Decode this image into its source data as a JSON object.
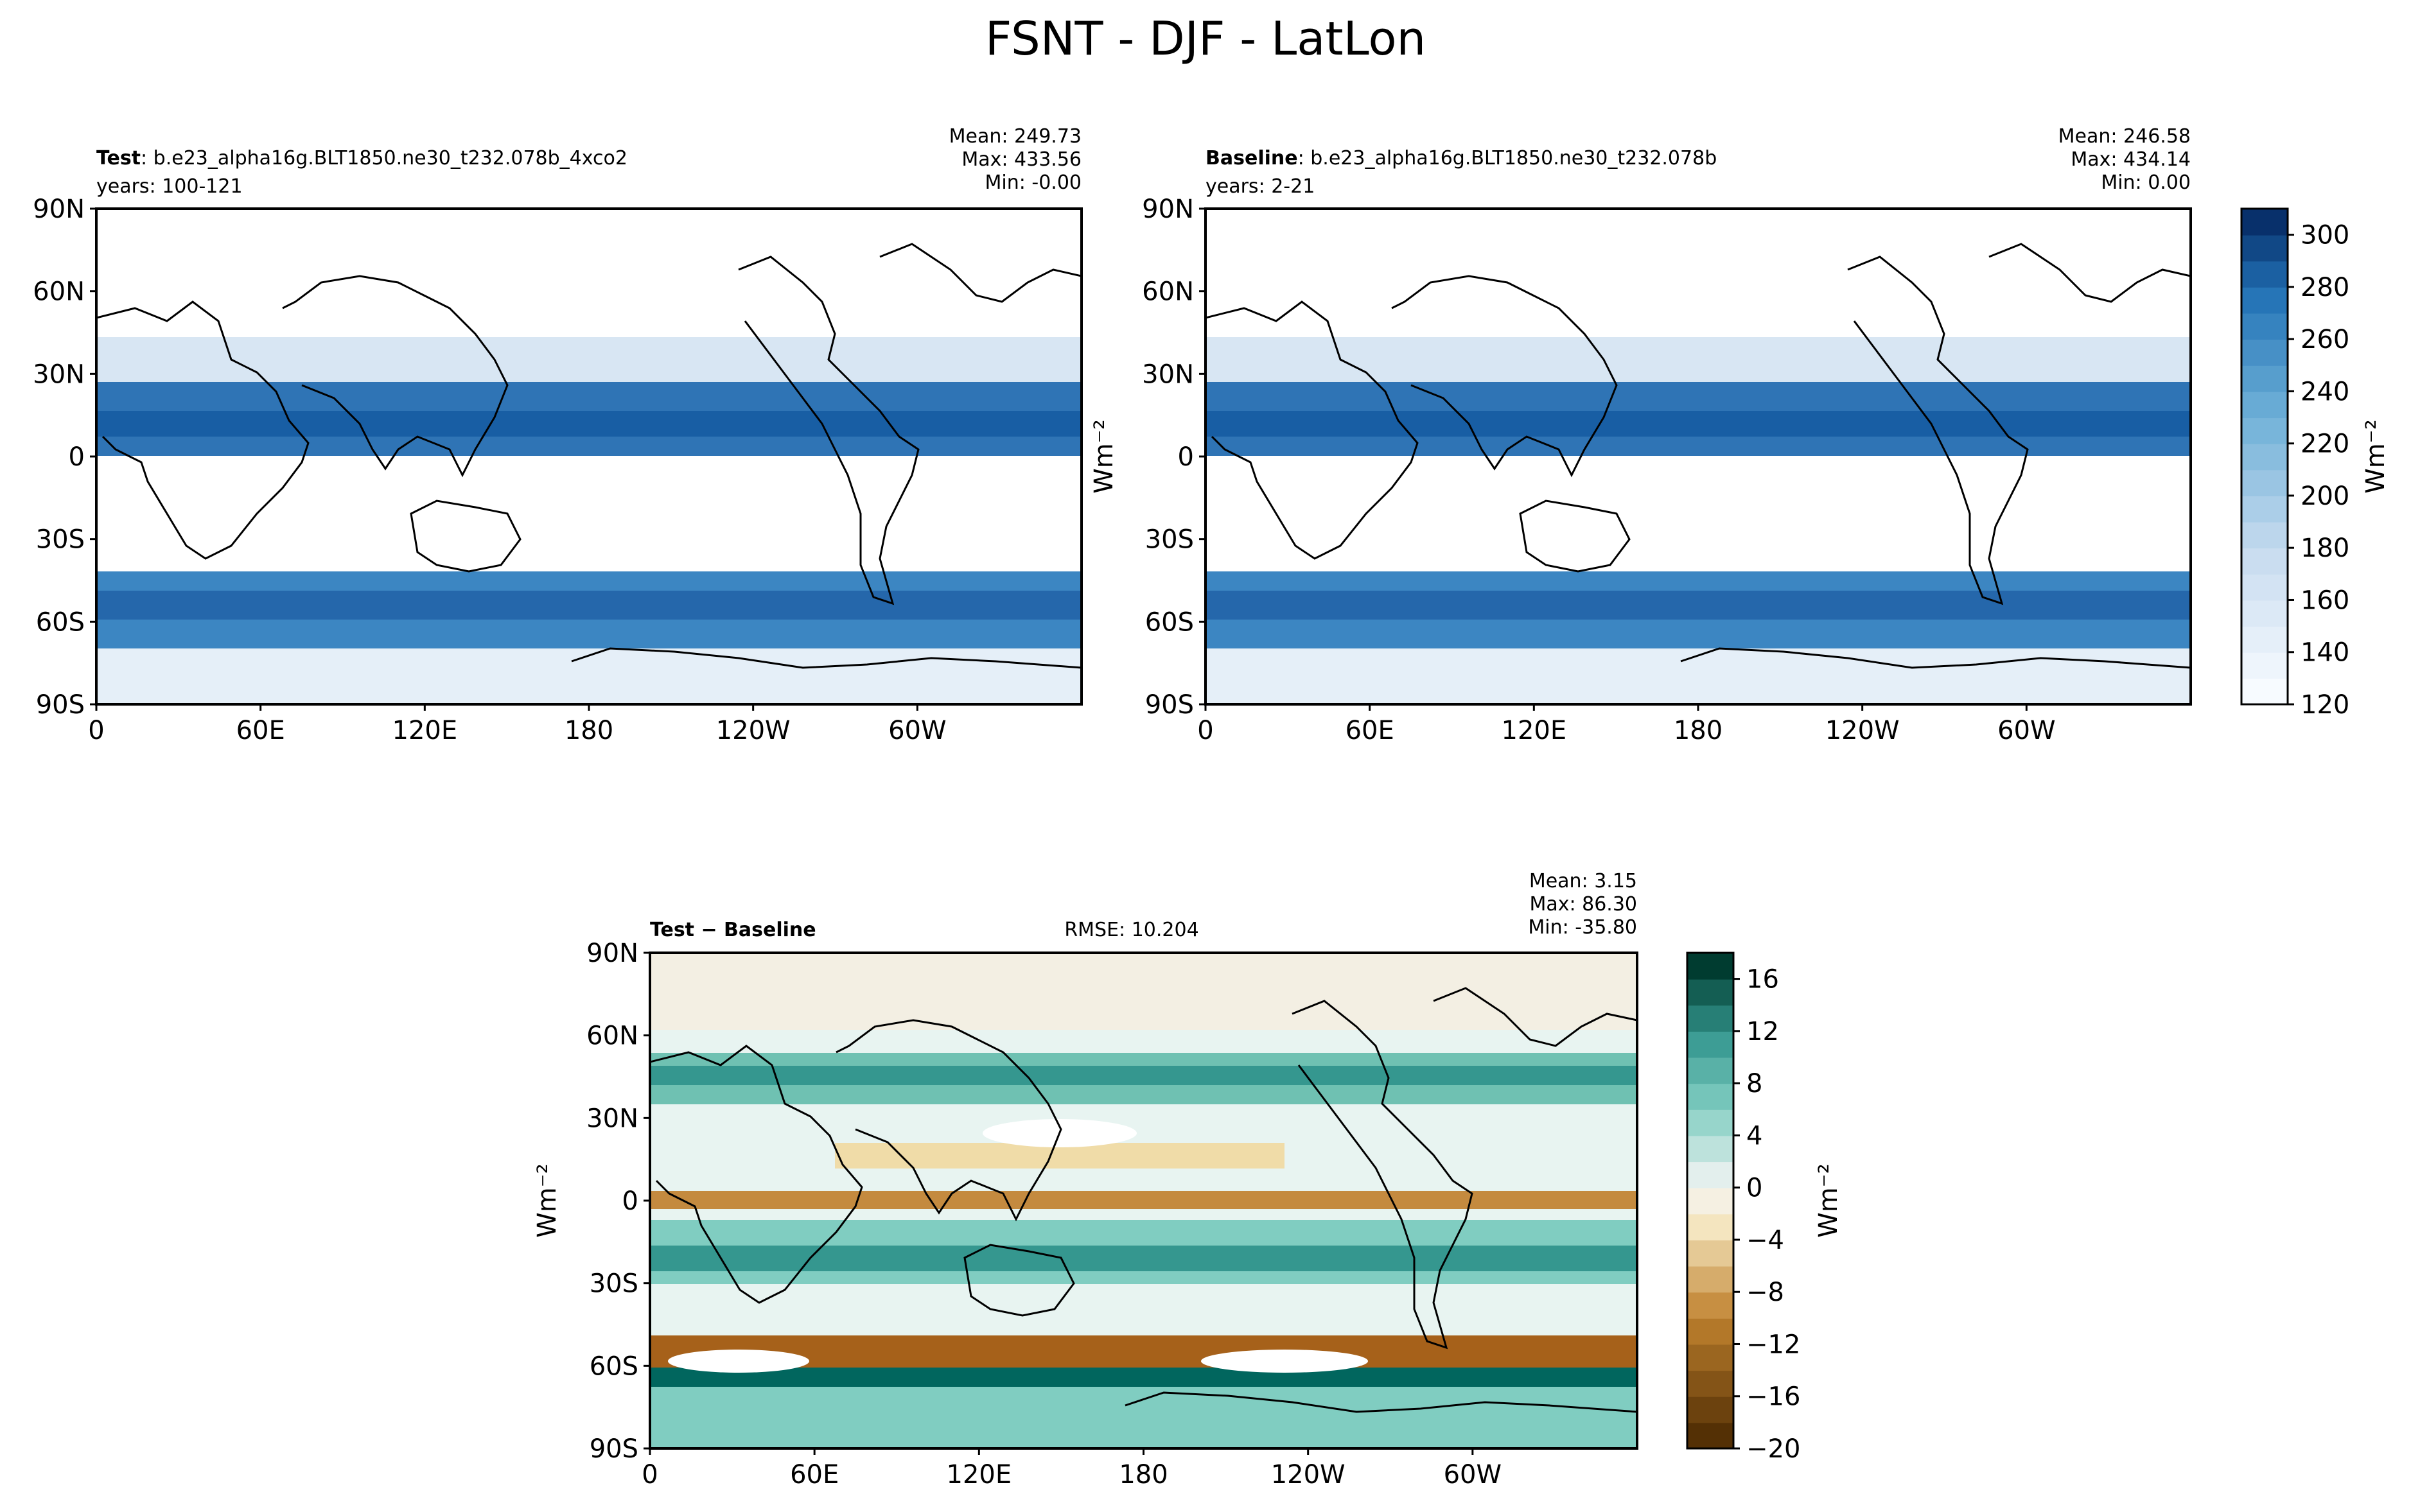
{
  "figure": {
    "title": "FSNT - DJF - LatLon"
  },
  "chart_data": [
    {
      "type": "heatmap",
      "panel": "test",
      "label_bold": "Test",
      "label_rest": ": b.e23_alpha16g.BLT1850.ne30_t232.078b_4xco2",
      "years": "years: 100-121",
      "stats": [
        "Mean: 249.73",
        "Max: 433.56",
        "Min: -0.00"
      ],
      "xticks": [
        "0",
        "60E",
        "120E",
        "180",
        "120W",
        "60W"
      ],
      "yticks": [
        "90N",
        "60N",
        "30N",
        "0",
        "30S",
        "60S",
        "90S"
      ],
      "xlim": [
        0,
        360
      ],
      "ylim": [
        -90,
        90
      ],
      "colorscale": "Blues",
      "vmin": 120,
      "vmax": 310
    },
    {
      "type": "heatmap",
      "panel": "baseline",
      "label_bold": "Baseline",
      "label_rest": ": b.e23_alpha16g.BLT1850.ne30_t232.078b",
      "years": "years: 2-21",
      "stats": [
        "Mean: 246.58",
        "Max: 434.14",
        "Min:  0.00"
      ],
      "xticks": [
        "0",
        "60E",
        "120E",
        "180",
        "120W",
        "60W"
      ],
      "yticks": [
        "90N",
        "60N",
        "30N",
        "0",
        "30S",
        "60S",
        "90S"
      ],
      "xlim": [
        0,
        360
      ],
      "ylim": [
        -90,
        90
      ],
      "ylabel": "Wm⁻²",
      "colorscale": "Blues",
      "vmin": 120,
      "vmax": 310,
      "colorbar": {
        "ticks": [
          "120",
          "140",
          "160",
          "180",
          "200",
          "220",
          "240",
          "260",
          "280",
          "300"
        ],
        "label": "Wm⁻²"
      }
    },
    {
      "type": "heatmap",
      "panel": "diff",
      "label_bold": "Test − Baseline",
      "rmse": "RMSE: 10.204",
      "stats": [
        "Mean:  3.15",
        "Max: 86.30",
        "Min: -35.80"
      ],
      "xticks": [
        "0",
        "60E",
        "120E",
        "180",
        "120W",
        "60W"
      ],
      "yticks": [
        "90N",
        "60N",
        "30N",
        "0",
        "30S",
        "60S",
        "90S"
      ],
      "xlim": [
        0,
        360
      ],
      "ylim": [
        -90,
        90
      ],
      "ylabel": "Wm⁻²",
      "colorscale": "BrBG",
      "vmin": -20,
      "vmax": 18,
      "colorbar": {
        "ticks": [
          "16",
          "12",
          "8",
          "4",
          "0",
          "−4",
          "−8",
          "−12",
          "−16",
          "−20"
        ],
        "label": "Wm⁻²"
      }
    }
  ]
}
